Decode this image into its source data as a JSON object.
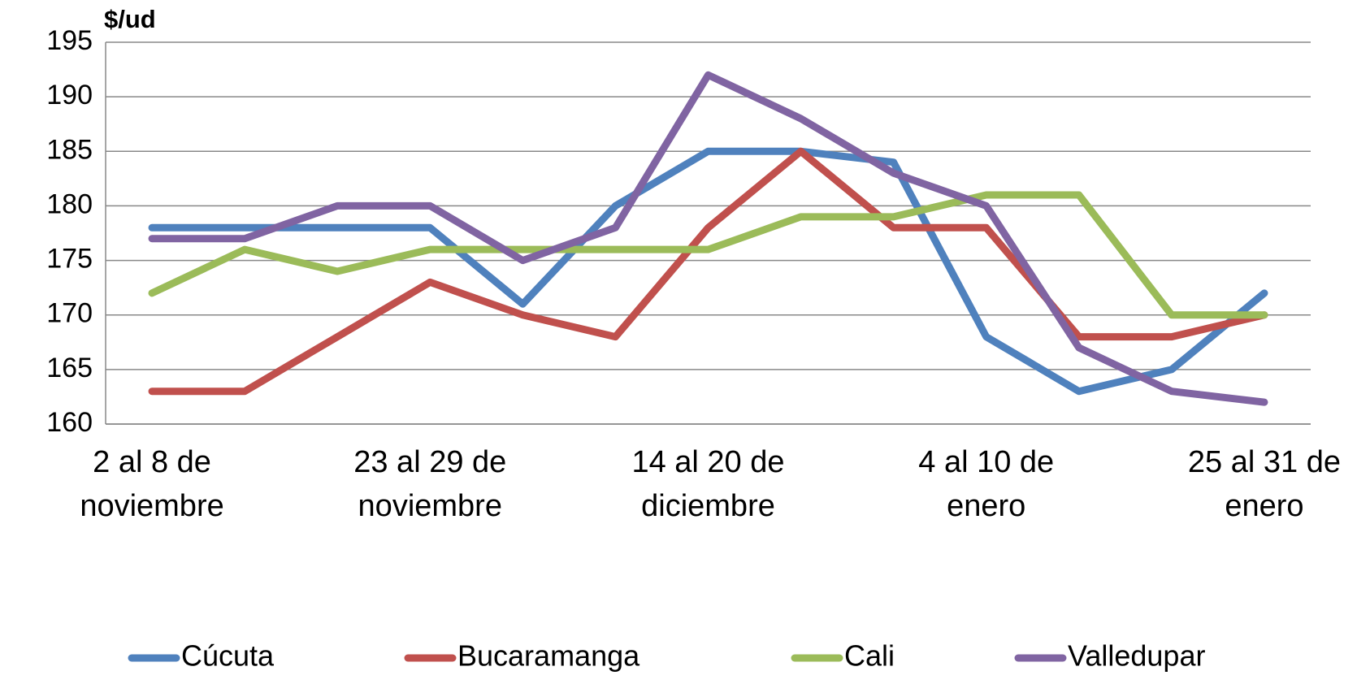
{
  "chart_data": {
    "type": "line",
    "y_axis_label": "$/ud",
    "categories": [
      "2 al 8 de noviembre",
      null,
      null,
      "23 al 29 de noviembre",
      null,
      null,
      "14 al 20 de diciembre",
      null,
      null,
      "4 al 10 de enero",
      null,
      null,
      "25 al 31 de enero"
    ],
    "series": [
      {
        "name": "Cúcuta",
        "color": "#4f81bd",
        "values": [
          178,
          178,
          178,
          178,
          171,
          180,
          185,
          185,
          184,
          168,
          163,
          165,
          172
        ]
      },
      {
        "name": "Bucaramanga",
        "color": "#c0504d",
        "values": [
          163,
          163,
          168,
          173,
          170,
          168,
          178,
          185,
          178,
          178,
          168,
          168,
          170
        ]
      },
      {
        "name": "Cali",
        "color": "#9bbb59",
        "values": [
          172,
          176,
          174,
          176,
          176,
          176,
          176,
          179,
          179,
          181,
          181,
          170,
          170
        ]
      },
      {
        "name": "Valledupar",
        "color": "#8064a2",
        "values": [
          177,
          177,
          180,
          180,
          175,
          178,
          192,
          188,
          183,
          180,
          167,
          163,
          162
        ]
      }
    ],
    "ylim": [
      160,
      195
    ],
    "yticks": [
      160,
      165,
      170,
      175,
      180,
      185,
      190,
      195
    ],
    "grid": true,
    "legend": "bottom"
  }
}
